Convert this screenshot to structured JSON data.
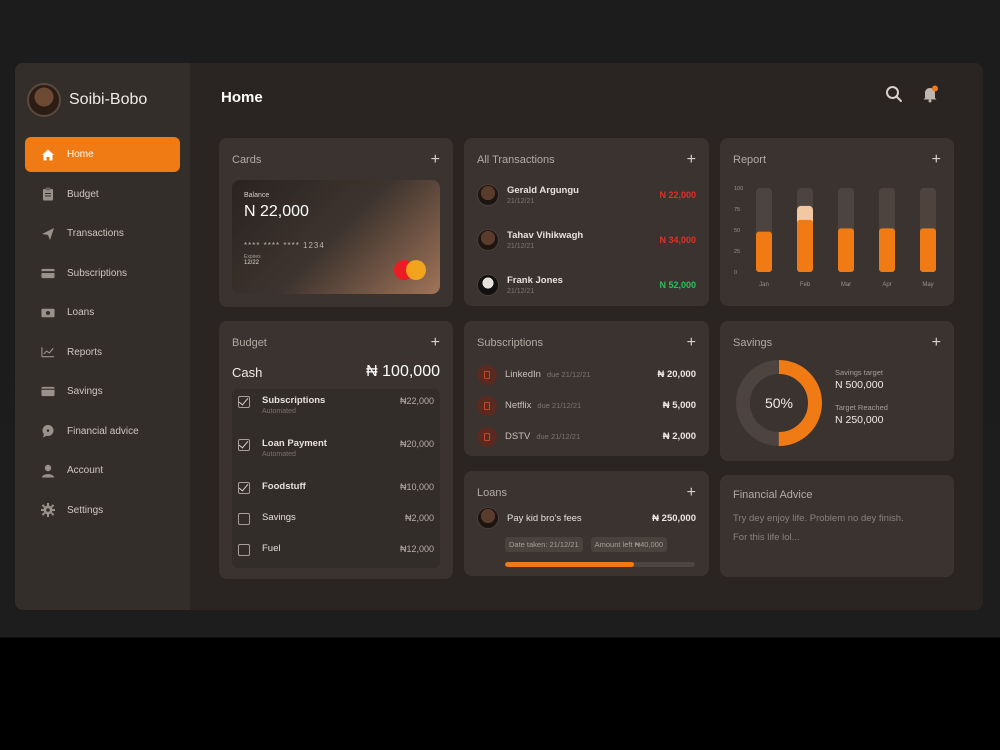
{
  "profile": {
    "name": "Soibi-Bobo"
  },
  "nav": [
    {
      "label": "Home",
      "icon": "home-icon",
      "active": true
    },
    {
      "label": "Budget",
      "icon": "clipboard-icon"
    },
    {
      "label": "Transactions",
      "icon": "send-icon"
    },
    {
      "label": "Subscriptions",
      "icon": "card-icon"
    },
    {
      "label": "Loans",
      "icon": "money-icon"
    },
    {
      "label": "Reports",
      "icon": "chart-icon"
    },
    {
      "label": "Savings",
      "icon": "wallet-icon"
    },
    {
      "label": "Financial advice",
      "icon": "chat-icon"
    },
    {
      "label": "Account",
      "icon": "user-icon"
    },
    {
      "label": "Settings",
      "icon": "gear-icon"
    }
  ],
  "header": {
    "title": "Home"
  },
  "cards": {
    "title": "Cards",
    "balance_label": "Balance",
    "balance": "N 22,000",
    "number": "**** **** **** 1234",
    "expiry_label": "Expires",
    "expiry": "12/22"
  },
  "transactions": {
    "title": "All Transactions",
    "items": [
      {
        "name": "Gerald Argungu",
        "date": "21/12/21",
        "amount": "N 22,000",
        "color": "#e0302a"
      },
      {
        "name": "Tahav Vihikwagh",
        "date": "21/12/21",
        "amount": "N 34,000",
        "color": "#e0302a"
      },
      {
        "name": "Frank Jones",
        "date": "21/12/21",
        "amount": "N 52,000",
        "color": "#2fbf5a"
      }
    ]
  },
  "report": {
    "title": "Report",
    "ticks": [
      "100",
      "75",
      "50",
      "25",
      "0"
    ]
  },
  "chart_data": {
    "type": "bar",
    "categories": [
      "Jan",
      "Feb",
      "Mar",
      "Apr",
      "May"
    ],
    "values": [
      48,
      62,
      52,
      52,
      52
    ],
    "ylim": [
      0,
      100
    ]
  },
  "budget": {
    "title": "Budget",
    "cash_label": "Cash",
    "cash_value": "₦ 100,000",
    "items": [
      {
        "name": "Subscriptions",
        "sub": "Automated",
        "amount": "₦22,000",
        "checked": true
      },
      {
        "name": "Loan Payment",
        "sub": "Automated",
        "amount": "₦20,000",
        "checked": true
      },
      {
        "name": "Foodstuff",
        "sub": "",
        "amount": "₦10,000",
        "checked": true
      },
      {
        "name": "Savings",
        "sub": "",
        "amount": "₦2,000",
        "checked": false
      },
      {
        "name": "Fuel",
        "sub": "",
        "amount": "₦12,000",
        "checked": false
      }
    ]
  },
  "subscriptions": {
    "title": "Subscriptions",
    "items": [
      {
        "name": "LinkedIn",
        "due": "due 21/12/21",
        "amount": "₦ 20,000"
      },
      {
        "name": "Netflix",
        "due": "due 21/12/21",
        "amount": "₦ 5,000"
      },
      {
        "name": "DSTV",
        "due": "due 21/12/21",
        "amount": "₦ 2,000"
      }
    ]
  },
  "savings": {
    "title": "Savings",
    "percent_label": "50%",
    "progress": 0.5,
    "target_label": "Savings target",
    "target_value": "N 500,000",
    "reached_label": "Target Reached",
    "reached_value": "N 250,000"
  },
  "loans": {
    "title": "Loans",
    "name": "Pay kid bro's fees",
    "amount": "₦ 250,000",
    "date_tag": "Date taken: 21/12/21",
    "left_tag": "Amount left ₦40,000",
    "progress": 0.68
  },
  "advice": {
    "title": "Financial Advice",
    "line1": "Try dey enjoy life. Problem no dey finish.",
    "line2": "For this life lol..."
  },
  "colors": {
    "accent": "#f07a14",
    "negative": "#e0302a",
    "positive": "#2fbf5a"
  }
}
